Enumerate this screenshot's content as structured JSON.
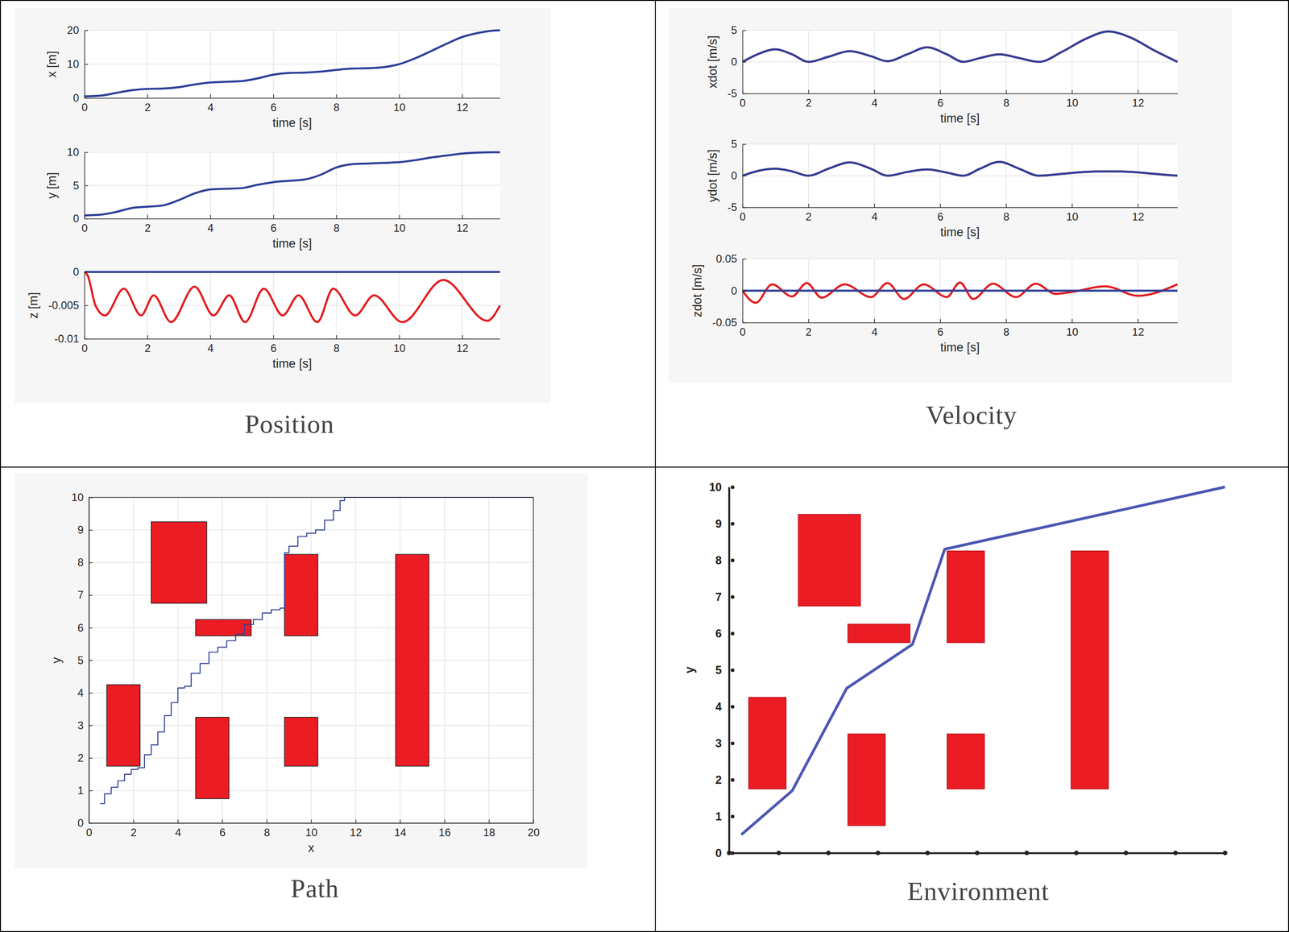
{
  "captions": [
    "Position",
    "Velocity",
    "Path",
    "Environment"
  ],
  "chart_data": [
    {
      "type": "spline",
      "xlabel": "time [s]",
      "ylabel": "x [m]",
      "xlim": [
        0,
        13.2
      ],
      "ylim": [
        0,
        20
      ],
      "xticks": [
        0,
        2,
        4,
        6,
        8,
        10,
        12
      ],
      "yticks": [
        0,
        10,
        20
      ],
      "grid": true,
      "series": [
        {
          "color": "#2e3f99",
          "x": [
            0,
            0.5,
            1,
            1.5,
            2,
            2.5,
            3,
            3.5,
            4,
            4.5,
            5,
            5.5,
            6,
            6.5,
            7,
            7.5,
            8,
            8.5,
            9,
            9.5,
            10,
            10.5,
            11,
            11.5,
            12,
            12.5,
            13,
            13.2
          ],
          "values": [
            0.5,
            0.7,
            1.5,
            2.3,
            2.7,
            2.8,
            3.2,
            4.0,
            4.6,
            4.8,
            5.0,
            5.8,
            6.9,
            7.4,
            7.5,
            7.8,
            8.3,
            8.7,
            8.8,
            9.1,
            10.0,
            11.7,
            13.8,
            16.0,
            18.0,
            19.2,
            19.9,
            20.0
          ]
        }
      ]
    },
    {
      "type": "spline",
      "xlabel": "time [s]",
      "ylabel": "y [m]",
      "xlim": [
        0,
        13.2
      ],
      "ylim": [
        0,
        10
      ],
      "xticks": [
        0,
        2,
        4,
        6,
        8,
        10,
        12
      ],
      "yticks": [
        0,
        5,
        10
      ],
      "grid": true,
      "series": [
        {
          "color": "#2e3f99",
          "x": [
            0,
            0.5,
            1,
            1.5,
            2,
            2.5,
            3,
            3.5,
            4,
            4.5,
            5,
            5.5,
            6,
            6.5,
            7,
            7.5,
            8,
            8.5,
            9,
            9.5,
            10,
            10.5,
            11,
            11.5,
            12,
            12.5,
            13,
            13.2
          ],
          "values": [
            0.5,
            0.6,
            1.0,
            1.6,
            1.8,
            2.0,
            2.8,
            3.8,
            4.4,
            4.5,
            4.6,
            5.1,
            5.5,
            5.7,
            5.9,
            6.6,
            7.7,
            8.2,
            8.3,
            8.4,
            8.5,
            8.8,
            9.2,
            9.5,
            9.8,
            9.95,
            10.0,
            10.0
          ]
        }
      ]
    },
    {
      "type": "spline",
      "xlabel": "time [s]",
      "ylabel": "z [m]",
      "xlim": [
        0,
        13.2
      ],
      "ylim": [
        -0.01,
        0
      ],
      "xticks": [
        0,
        2,
        4,
        6,
        8,
        10,
        12
      ],
      "yticks": [
        -0.01,
        -0.005,
        0
      ],
      "grid": true,
      "series": [
        {
          "color": "#2e3f99",
          "x": [
            0,
            13.2
          ],
          "values": [
            0,
            0
          ]
        },
        {
          "color": "#e31a1c",
          "x": [
            0,
            0.1,
            0.35,
            0.65,
            1.25,
            1.8,
            2.2,
            2.75,
            3.5,
            4.1,
            4.6,
            5.1,
            5.7,
            6.3,
            6.8,
            7.4,
            7.9,
            8.6,
            9.2,
            10.1,
            11.4,
            12.8,
            13.2
          ],
          "values": [
            0,
            -0.0005,
            -0.005,
            -0.0065,
            -0.0025,
            -0.0065,
            -0.0035,
            -0.0075,
            -0.0022,
            -0.0065,
            -0.0035,
            -0.0075,
            -0.0025,
            -0.0065,
            -0.0035,
            -0.0075,
            -0.0025,
            -0.0065,
            -0.0035,
            -0.0075,
            -0.0012,
            -0.0073,
            -0.005
          ]
        }
      ]
    },
    {
      "type": "spline",
      "xlabel": "time [s]",
      "ylabel": "xdot [m/s]",
      "xlim": [
        0,
        13.2
      ],
      "ylim": [
        -5,
        5
      ],
      "xticks": [
        0,
        2,
        4,
        6,
        8,
        10,
        12
      ],
      "yticks": [
        -5,
        0,
        5
      ],
      "grid": true,
      "series": [
        {
          "color": "#e31a1c",
          "x": [
            0,
            0.5,
            1,
            1.5,
            2,
            2.6,
            3.25,
            3.9,
            4.4,
            5,
            5.6,
            6.2,
            6.7,
            7.2,
            7.8,
            8.4,
            9,
            9.7,
            10.4,
            11.1,
            11.8,
            12.5,
            13.2
          ],
          "values": [
            0,
            1.3,
            2.0,
            1.2,
            0,
            0.8,
            1.7,
            0.9,
            0.1,
            1.2,
            2.3,
            1.2,
            0,
            0.6,
            1.2,
            0.6,
            0,
            1.6,
            3.6,
            4.8,
            3.8,
            1.8,
            0
          ]
        },
        {
          "color": "#2e3f99",
          "x": [
            0,
            0.5,
            1,
            1.5,
            2,
            2.6,
            3.25,
            3.9,
            4.4,
            5,
            5.6,
            6.2,
            6.7,
            7.2,
            7.8,
            8.4,
            9,
            9.7,
            10.4,
            11.1,
            11.8,
            12.5,
            13.2
          ],
          "values": [
            0,
            1.3,
            2.0,
            1.2,
            0,
            0.8,
            1.7,
            0.9,
            0.1,
            1.2,
            2.3,
            1.2,
            0,
            0.6,
            1.2,
            0.6,
            0,
            1.6,
            3.6,
            4.8,
            3.8,
            1.8,
            0
          ]
        }
      ]
    },
    {
      "type": "spline",
      "xlabel": "time [s]",
      "ylabel": "ydot [m/s]",
      "xlim": [
        0,
        13.2
      ],
      "ylim": [
        -5,
        5
      ],
      "xticks": [
        0,
        2,
        4,
        6,
        8,
        10,
        12
      ],
      "yticks": [
        -5,
        0,
        5
      ],
      "grid": true,
      "series": [
        {
          "color": "#e31a1c",
          "x": [
            0,
            0.5,
            1,
            1.5,
            2,
            2.6,
            3.25,
            3.9,
            4.4,
            5,
            5.6,
            6.2,
            6.7,
            7.2,
            7.8,
            8.4,
            9,
            9.7,
            10.4,
            11.1,
            11.8,
            12.5,
            13.2
          ],
          "values": [
            0,
            0.8,
            1.1,
            0.7,
            0,
            1.1,
            2.1,
            1.1,
            0,
            0.6,
            1.0,
            0.5,
            0,
            1.1,
            2.2,
            1.1,
            0,
            0.3,
            0.6,
            0.7,
            0.6,
            0.3,
            0
          ]
        },
        {
          "color": "#2e3f99",
          "x": [
            0,
            0.5,
            1,
            1.5,
            2,
            2.6,
            3.25,
            3.9,
            4.4,
            5,
            5.6,
            6.2,
            6.7,
            7.2,
            7.8,
            8.4,
            9,
            9.7,
            10.4,
            11.1,
            11.8,
            12.5,
            13.2
          ],
          "values": [
            0,
            0.8,
            1.1,
            0.7,
            0,
            1.1,
            2.1,
            1.1,
            0,
            0.6,
            1.0,
            0.5,
            0,
            1.1,
            2.2,
            1.1,
            0,
            0.3,
            0.6,
            0.7,
            0.6,
            0.3,
            0
          ]
        }
      ]
    },
    {
      "type": "spline",
      "xlabel": "time [s]",
      "ylabel": "zdot [m/s]",
      "xlim": [
        0,
        13.2
      ],
      "ylim": [
        -0.05,
        0.05
      ],
      "xticks": [
        0,
        2,
        4,
        6,
        8,
        10,
        12
      ],
      "yticks": [
        -0.05,
        0,
        0.05
      ],
      "grid": true,
      "series": [
        {
          "color": "#e31a1c",
          "x": [
            0,
            0.4,
            0.9,
            1.5,
            1.95,
            2.4,
            3.1,
            3.9,
            4.4,
            4.9,
            5.5,
            6.2,
            6.6,
            7.0,
            7.6,
            8.3,
            8.9,
            9.5,
            10.0,
            11.0,
            12.0,
            13.2
          ],
          "values": [
            0,
            -0.019,
            0.01,
            -0.009,
            0.012,
            -0.011,
            0.01,
            -0.01,
            0.012,
            -0.013,
            0.01,
            -0.01,
            0.013,
            -0.013,
            0.011,
            -0.01,
            0.011,
            -0.005,
            -0.002,
            0.007,
            -0.008,
            0.01
          ]
        },
        {
          "color": "#2e3f99",
          "x": [
            0,
            13.2
          ],
          "values": [
            0,
            0
          ]
        }
      ]
    },
    {
      "type": "step",
      "xlabel": "x",
      "ylabel": "y",
      "xlim": [
        0,
        20
      ],
      "ylim": [
        0,
        10
      ],
      "xticks": [
        0,
        2,
        4,
        6,
        8,
        10,
        12,
        14,
        16,
        18,
        20
      ],
      "yticks": [
        0,
        1,
        2,
        3,
        4,
        5,
        6,
        7,
        8,
        9,
        10
      ],
      "grid": true,
      "obstacles": [
        {
          "x": [
            0.8,
            2.3
          ],
          "y": [
            1.75,
            4.25
          ]
        },
        {
          "x": [
            2.8,
            5.3
          ],
          "y": [
            6.75,
            9.25
          ]
        },
        {
          "x": [
            4.8,
            7.3
          ],
          "y": [
            5.75,
            6.25
          ]
        },
        {
          "x": [
            4.8,
            6.3
          ],
          "y": [
            0.75,
            3.25
          ]
        },
        {
          "x": [
            8.8,
            10.3
          ],
          "y": [
            5.75,
            8.25
          ]
        },
        {
          "x": [
            8.8,
            10.3
          ],
          "y": [
            1.75,
            3.25
          ]
        },
        {
          "x": [
            13.8,
            15.3
          ],
          "y": [
            1.75,
            8.25
          ]
        }
      ],
      "series": [
        {
          "color": "#2e3f99",
          "x": [
            0.5,
            0.7,
            1.0,
            1.3,
            1.6,
            1.9,
            2.2,
            2.5,
            2.8,
            3.1,
            3.4,
            3.7,
            4.0,
            4.3,
            4.6,
            5.0,
            5.4,
            5.8,
            6.2,
            6.6,
            7.0,
            7.4,
            7.8,
            8.2,
            8.6,
            8.8,
            9.0,
            9.4,
            9.8,
            10.2,
            10.6,
            11.0,
            11.3,
            11.5,
            20
          ],
          "values": [
            0.6,
            0.9,
            1.1,
            1.3,
            1.5,
            1.65,
            1.7,
            2.1,
            2.4,
            2.8,
            3.3,
            3.7,
            4.15,
            4.2,
            4.6,
            4.9,
            5.25,
            5.4,
            5.6,
            5.8,
            6.1,
            6.25,
            6.45,
            6.55,
            6.6,
            8.3,
            8.5,
            8.8,
            8.9,
            9.0,
            9.3,
            9.6,
            9.9,
            10,
            10
          ]
        }
      ]
    },
    {
      "type": "line",
      "ylabel": "y",
      "xlim": [
        0,
        20
      ],
      "ylim": [
        0,
        10
      ],
      "xticks": [
        0,
        2,
        4,
        6,
        8,
        10,
        12,
        14,
        16,
        18,
        20
      ],
      "yticks": [
        0,
        1,
        2,
        3,
        4,
        5,
        6,
        7,
        8,
        9,
        10
      ],
      "grid": false,
      "tick_labels": "y",
      "obstacles": [
        {
          "x": [
            0.8,
            2.3
          ],
          "y": [
            1.75,
            4.25
          ]
        },
        {
          "x": [
            2.8,
            5.3
          ],
          "y": [
            6.75,
            9.25
          ]
        },
        {
          "x": [
            4.8,
            7.3
          ],
          "y": [
            5.75,
            6.25
          ]
        },
        {
          "x": [
            4.8,
            6.3
          ],
          "y": [
            0.75,
            3.25
          ]
        },
        {
          "x": [
            8.8,
            10.3
          ],
          "y": [
            5.75,
            8.25
          ]
        },
        {
          "x": [
            8.8,
            10.3
          ],
          "y": [
            1.75,
            3.25
          ]
        },
        {
          "x": [
            13.8,
            15.3
          ],
          "y": [
            1.75,
            8.25
          ]
        }
      ],
      "series": [
        {
          "color": "#4a56b3",
          "x": [
            0.5,
            2.55,
            4.75,
            7.4,
            8.7,
            20
          ],
          "values": [
            0.5,
            1.7,
            4.5,
            5.7,
            8.3,
            10
          ]
        }
      ]
    }
  ]
}
